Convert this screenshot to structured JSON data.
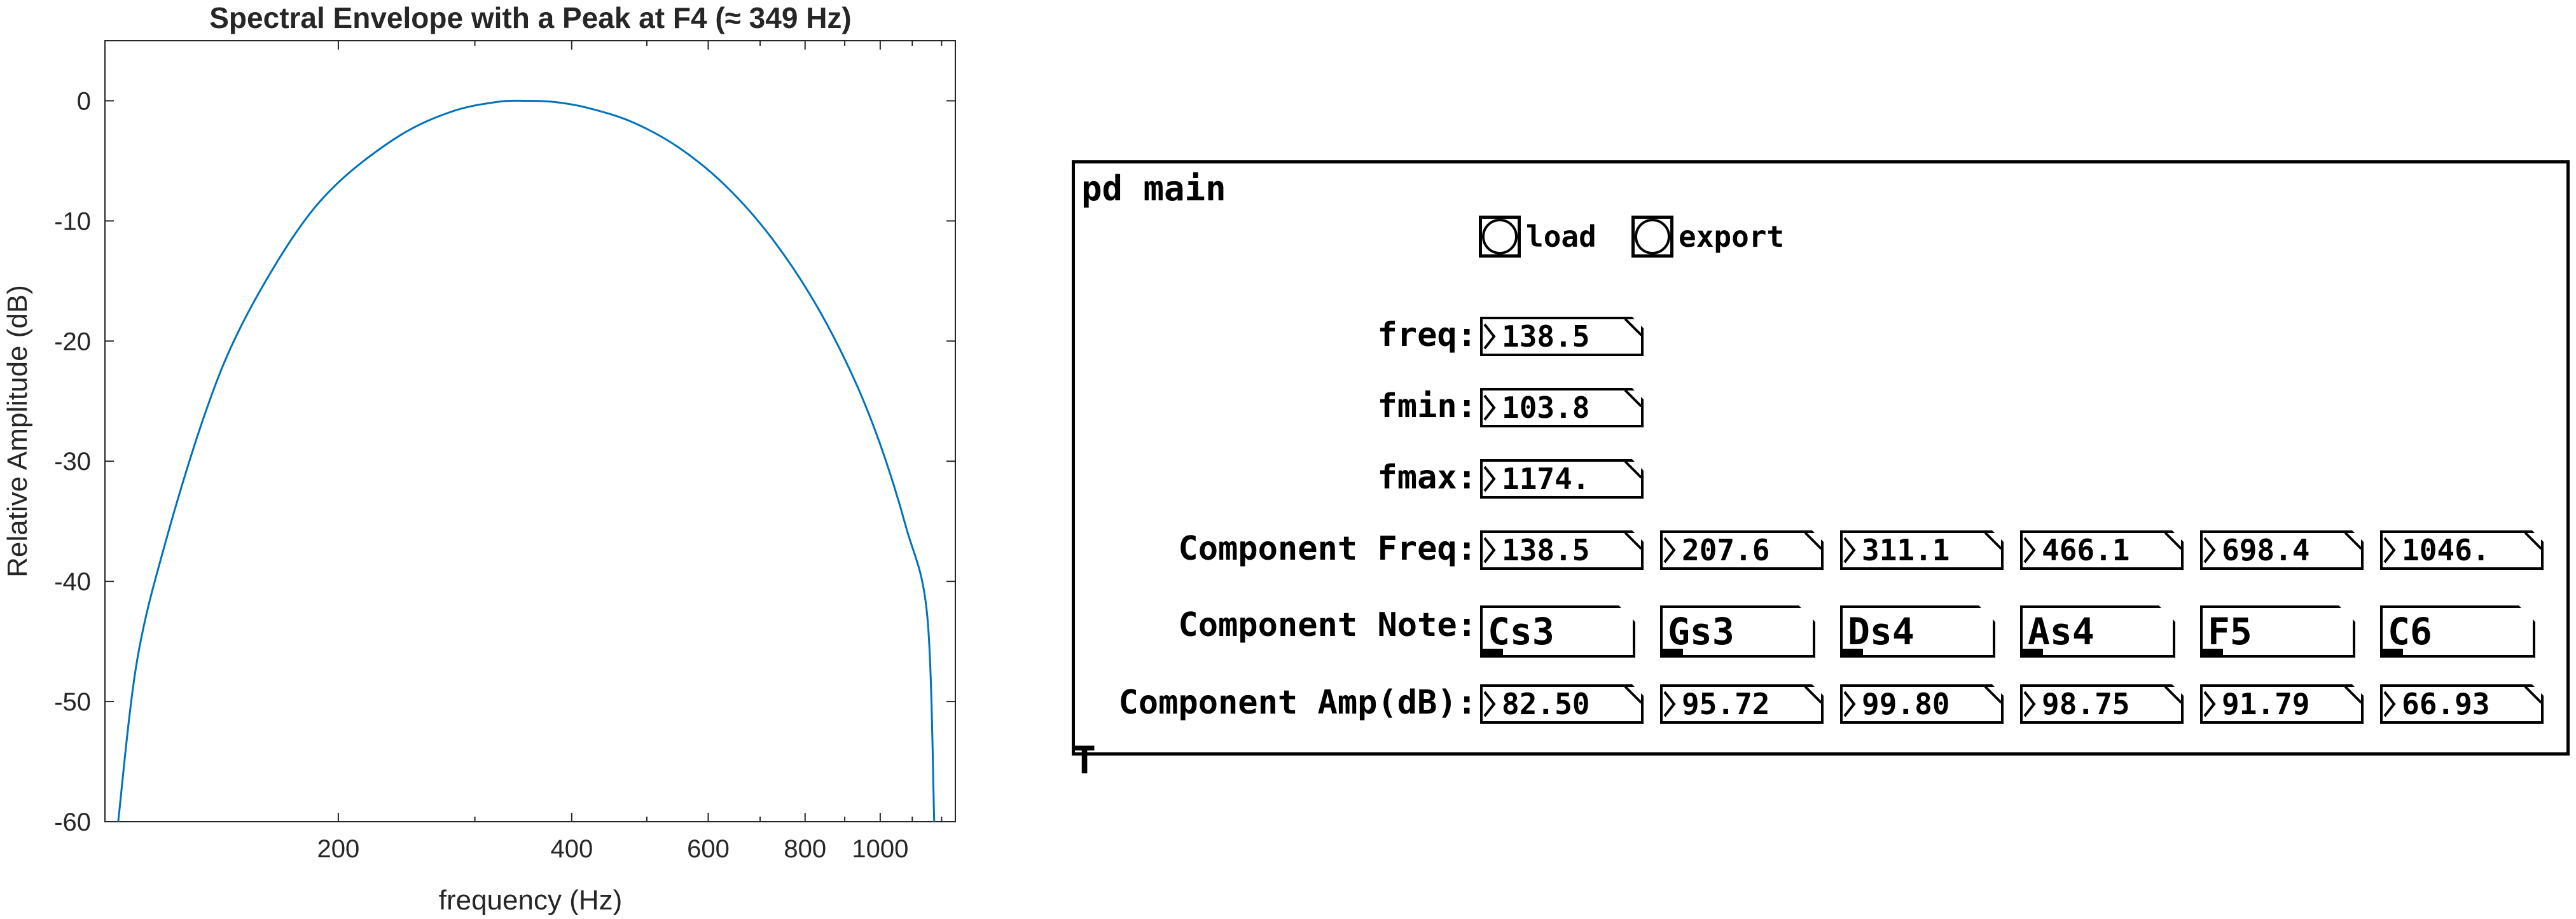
{
  "chart_data": {
    "type": "line",
    "title": "Spectral Envelope with a Peak at F4 (≈ 349 Hz)",
    "xlabel": "frequency (Hz)",
    "ylabel": "Relative Amplitude (dB)",
    "xscale": "log",
    "xlim": [
      100,
      1250
    ],
    "ylim": [
      -60,
      5
    ],
    "xticks": [
      200,
      400,
      600,
      800,
      1000
    ],
    "yticks": [
      0,
      -10,
      -20,
      -30,
      -40,
      -50,
      -60
    ],
    "grid": false,
    "color": "#0072BD",
    "series": [
      {
        "x": [
          104,
          110,
          120,
          135,
          150,
          175,
          200,
          240,
          280,
          320,
          349,
          380,
          420,
          480,
          550,
          630,
          720,
          820,
          920,
          1000,
          1080,
          1150,
          1174
        ],
        "values": [
          -60,
          -46.6,
          -36.5,
          -25.8,
          -18.7,
          -11.3,
          -6.8,
          -2.9,
          -0.9,
          -0.1,
          0,
          -0.1,
          -0.6,
          -1.8,
          -3.9,
          -7.0,
          -11.2,
          -16.6,
          -22.8,
          -28.6,
          -35.5,
          -42.9,
          -60
        ]
      }
    ]
  },
  "patch": {
    "title": "pd main",
    "bangs": [
      {
        "label": "load"
      },
      {
        "label": "export"
      }
    ],
    "rows": {
      "freq": {
        "label": "freq:",
        "value": "138.5"
      },
      "fmin": {
        "label": "fmin:",
        "value": "103.8"
      },
      "fmax": {
        "label": "fmax:",
        "value": "1174."
      }
    },
    "component_freq": {
      "label": "Component Freq:",
      "values": [
        "138.5",
        "207.6",
        "311.1",
        "466.1",
        "698.4",
        "1046."
      ]
    },
    "component_note": {
      "label": "Component Note:",
      "values": [
        "Cs3",
        "Gs3",
        "Ds4",
        "As4",
        "F5",
        "C6"
      ]
    },
    "component_amp": {
      "label": "Component Amp(dB):",
      "values": [
        "82.50",
        "95.72",
        "99.80",
        "98.75",
        "91.79",
        "66.93"
      ]
    },
    "corner_glyph": "T"
  }
}
